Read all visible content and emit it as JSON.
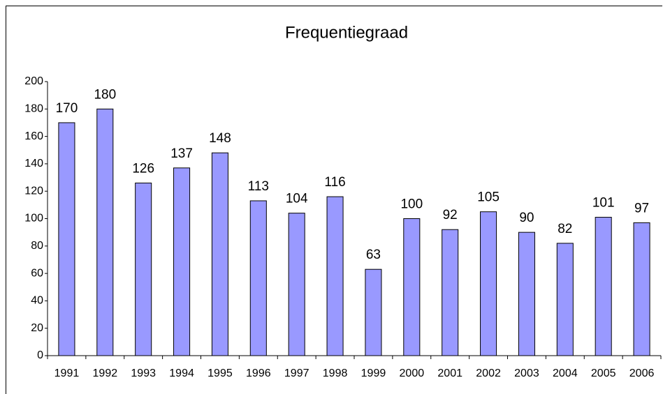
{
  "chart_data": {
    "type": "bar",
    "title": "Frequentiegraad",
    "categories": [
      "1991",
      "1992",
      "1993",
      "1994",
      "1995",
      "1996",
      "1997",
      "1998",
      "1999",
      "2000",
      "2001",
      "2002",
      "2003",
      "2004",
      "2005",
      "2006"
    ],
    "values": [
      170,
      180,
      126,
      137,
      148,
      113,
      104,
      116,
      63,
      100,
      92,
      105,
      90,
      82,
      101,
      97
    ],
    "color": "#9999ff",
    "ylim": [
      0,
      200
    ],
    "yticks": [
      0,
      20,
      40,
      60,
      80,
      100,
      120,
      140,
      160,
      180,
      200
    ]
  }
}
